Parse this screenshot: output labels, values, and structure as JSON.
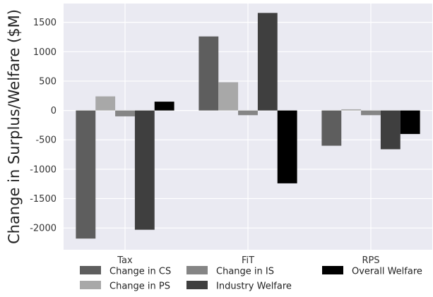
{
  "chart_data": {
    "type": "bar",
    "categories": [
      "Tax",
      "FiT",
      "RPS"
    ],
    "series": [
      {
        "name": "Change in CS",
        "color": "#5e5e5e",
        "values": [
          -2180,
          1260,
          -600
        ]
      },
      {
        "name": "Change in PS",
        "color": "#a8a8a8",
        "values": [
          240,
          480,
          20
        ]
      },
      {
        "name": "Change in IS",
        "color": "#858585",
        "values": [
          -100,
          -80,
          -80
        ]
      },
      {
        "name": "Industry Welfare",
        "color": "#3f3f3f",
        "values": [
          -2030,
          1660,
          -660
        ]
      },
      {
        "name": "Overall Welfare",
        "color": "#000000",
        "values": [
          150,
          -1240,
          -400
        ]
      }
    ],
    "title": "",
    "xlabel": "",
    "ylabel": "Change in Surplus/Welfare ($M)",
    "ylim": [
      -2370,
      1820
    ],
    "yticks": [
      1500,
      1000,
      500,
      0,
      -500,
      -1000,
      -1500,
      -2000
    ],
    "ytick_labels": [
      "1500",
      "1000",
      "500",
      "0",
      "-500",
      "-1000",
      "-1500",
      "-2000"
    ],
    "grid": true,
    "background": "#eaeaf2",
    "legend": {
      "placement": "bottom",
      "columns": 3,
      "order": [
        "Change in CS",
        "Change in PS",
        "Change in IS",
        "Industry Welfare",
        "Overall Welfare"
      ]
    }
  }
}
